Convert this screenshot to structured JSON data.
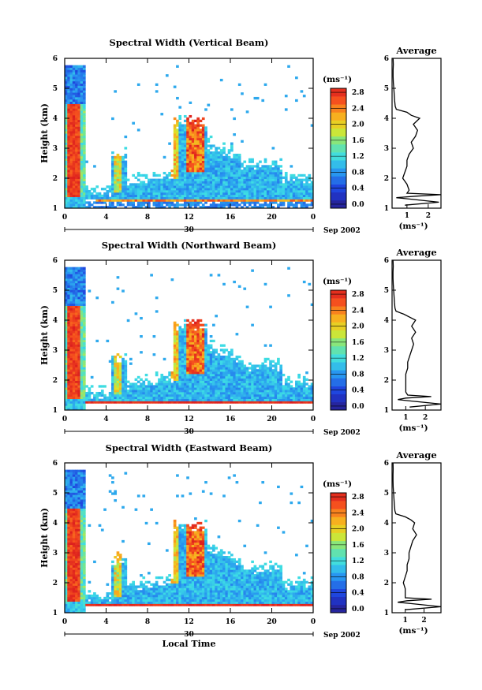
{
  "chart_data": [
    {
      "type": "heatmap",
      "title": "Spectral Width (Vertical Beam)",
      "ylabel": "Height (km)",
      "xlabel": "",
      "x_ticks": [
        "0",
        "4",
        "8",
        "12",
        "16",
        "20",
        "0"
      ],
      "y_ticks": [
        "1",
        "2",
        "3",
        "4",
        "5",
        "6"
      ],
      "xlim": [
        0,
        24
      ],
      "ylim": [
        1,
        6
      ],
      "date_day": "30",
      "date_label": "Sep 2002",
      "colorbar": {
        "unit": "(ms⁻¹)",
        "ticks": [
          "0.0",
          "0.4",
          "0.8",
          "1.2",
          "1.6",
          "2.0",
          "2.4",
          "2.8"
        ],
        "range": [
          0,
          3.0
        ]
      },
      "average": {
        "title": "Average",
        "xlabel": "(ms⁻¹)",
        "x_ticks": [
          "1",
          "2"
        ],
        "xlim": [
          0.3,
          2.6
        ],
        "height": [
          1.1,
          1.2,
          1.3,
          1.35,
          1.4,
          1.45,
          1.5,
          1.6,
          1.8,
          2.0,
          2.2,
          2.4,
          2.6,
          2.8,
          3.0,
          3.2,
          3.4,
          3.6,
          3.8,
          4.0,
          4.1,
          4.2,
          4.3,
          4.4,
          4.6,
          4.8,
          5.0,
          5.2,
          5.4,
          5.6,
          5.8,
          6.0
        ],
        "width": [
          0.9,
          2.5,
          1.2,
          0.5,
          1.4,
          2.6,
          1.0,
          1.1,
          1.0,
          0.8,
          0.9,
          1.0,
          1.0,
          1.1,
          1.3,
          1.2,
          1.4,
          1.5,
          1.3,
          1.6,
          1.2,
          1.0,
          0.5,
          0.45,
          0.42,
          0.4,
          0.38,
          0.36,
          0.35,
          0.35,
          0.36,
          0.35
        ]
      }
    },
    {
      "type": "heatmap",
      "title": "Spectral Width (Northward Beam)",
      "ylabel": "Height (km)",
      "xlabel": "",
      "x_ticks": [
        "0",
        "4",
        "8",
        "12",
        "16",
        "20",
        "0"
      ],
      "y_ticks": [
        "1",
        "2",
        "3",
        "4",
        "5",
        "6"
      ],
      "xlim": [
        0,
        24
      ],
      "ylim": [
        1,
        6
      ],
      "date_day": "30",
      "date_label": "Sep 2002",
      "colorbar": {
        "unit": "(ms⁻¹)",
        "ticks": [
          "0.0",
          "0.4",
          "0.8",
          "1.2",
          "1.6",
          "2.0",
          "2.4",
          "2.8"
        ],
        "range": [
          0,
          3.0
        ]
      },
      "average": {
        "title": "Average",
        "xlabel": "(ms⁻¹)",
        "x_ticks": [
          "1",
          "2"
        ],
        "xlim": [
          0.3,
          2.8
        ],
        "height": [
          1.1,
          1.2,
          1.3,
          1.35,
          1.4,
          1.45,
          1.5,
          1.6,
          1.8,
          2.0,
          2.2,
          2.4,
          2.6,
          2.8,
          3.0,
          3.2,
          3.4,
          3.6,
          3.8,
          4.0,
          4.1,
          4.2,
          4.3,
          4.4,
          4.6,
          4.8,
          5.0,
          5.2,
          5.4,
          5.6,
          5.8,
          6.0
        ],
        "width": [
          1.2,
          2.8,
          1.3,
          0.6,
          1.0,
          2.3,
          1.1,
          1.0,
          1.0,
          1.0,
          1.0,
          1.1,
          1.1,
          1.2,
          1.3,
          1.4,
          1.3,
          1.5,
          1.3,
          1.5,
          1.2,
          0.9,
          0.5,
          0.45,
          0.42,
          0.4,
          0.38,
          0.36,
          0.35,
          0.35,
          0.36,
          0.35
        ]
      }
    },
    {
      "type": "heatmap",
      "title": "Spectral Width (Eastward Beam)",
      "ylabel": "Height (km)",
      "xlabel": "Local Time",
      "x_ticks": [
        "0",
        "4",
        "8",
        "12",
        "16",
        "20",
        "0"
      ],
      "y_ticks": [
        "1",
        "2",
        "3",
        "4",
        "5",
        "6"
      ],
      "xlim": [
        0,
        24
      ],
      "ylim": [
        1,
        6
      ],
      "date_day": "30",
      "date_label": "Sep 2002",
      "colorbar": {
        "unit": "(ms⁻¹)",
        "ticks": [
          "0.0",
          "0.4",
          "0.8",
          "1.2",
          "1.6",
          "2.0",
          "2.4",
          "2.8"
        ],
        "range": [
          0,
          3.0
        ]
      },
      "average": {
        "title": "Average",
        "xlabel": "(ms⁻¹)",
        "x_ticks": [
          "1",
          "2"
        ],
        "xlim": [
          0.3,
          2.9
        ],
        "height": [
          1.1,
          1.2,
          1.3,
          1.35,
          1.4,
          1.45,
          1.5,
          1.6,
          1.8,
          2.0,
          2.2,
          2.4,
          2.6,
          2.8,
          3.0,
          3.2,
          3.4,
          3.6,
          3.8,
          4.0,
          4.1,
          4.2,
          4.3,
          4.4,
          4.6,
          4.8,
          5.0,
          5.2,
          5.4,
          5.6,
          5.8,
          6.0
        ],
        "width": [
          1.0,
          2.9,
          1.4,
          0.6,
          1.1,
          2.4,
          1.0,
          1.0,
          1.0,
          0.9,
          1.0,
          1.1,
          1.1,
          1.2,
          1.2,
          1.3,
          1.4,
          1.6,
          1.4,
          1.5,
          1.3,
          1.0,
          0.5,
          0.45,
          0.42,
          0.4,
          0.38,
          0.36,
          0.35,
          0.35,
          0.36,
          0.35
        ]
      }
    }
  ]
}
